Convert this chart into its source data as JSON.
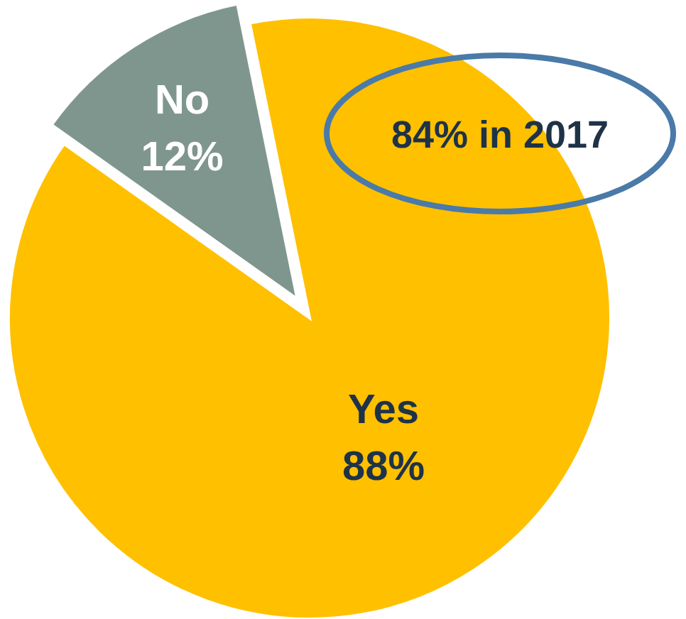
{
  "chart_data": {
    "type": "pie",
    "categories": [
      "Yes",
      "No"
    ],
    "values": [
      88,
      12
    ],
    "colors": [
      "#ffc000",
      "#7f968f"
    ],
    "value_labels": [
      "88%",
      "12%"
    ],
    "annotations": [
      "84% in 2017"
    ]
  }
}
